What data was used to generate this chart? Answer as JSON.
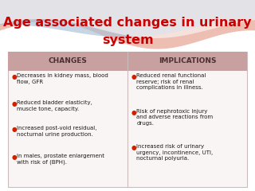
{
  "title_line1": "Age associated changes in urinary",
  "title_line2": "system",
  "title_color": "#cc0000",
  "title_fontsize": 11.5,
  "header_bg": "#c9a0a0",
  "header_text_color": "#4a3030",
  "body_bg": "#faf5f5",
  "bullet_color": "#cc2200",
  "text_color": "#1a1a1a",
  "col1_header": "CHANGES",
  "col2_header": "IMPLICATIONS",
  "col1_bullets": [
    "Decreases in kidney mass, blood\nflow, GFR",
    "Reduced bladder elasticity,\nmuscle tone, capacity.",
    "Increased post-void residual,\nnocturnal urine production.",
    "In males, prostate enlargement\nwith risk of (BPH)."
  ],
  "col2_bullets": [
    "Reduced renal functional\nreserve; risk of renal\ncomplications in illness.",
    "Risk of nephrotoxic injury\nand adverse reactions from\ndrugs.",
    "Increased risk of urinary\nurgency, incontinence, UTI,\nnocturnal polyuria."
  ],
  "wave_pink": "#e8a898",
  "wave_blue": "#a8c0d8",
  "bg_color": "#ffffff",
  "figsize": [
    3.2,
    2.4
  ],
  "dpi": 100
}
